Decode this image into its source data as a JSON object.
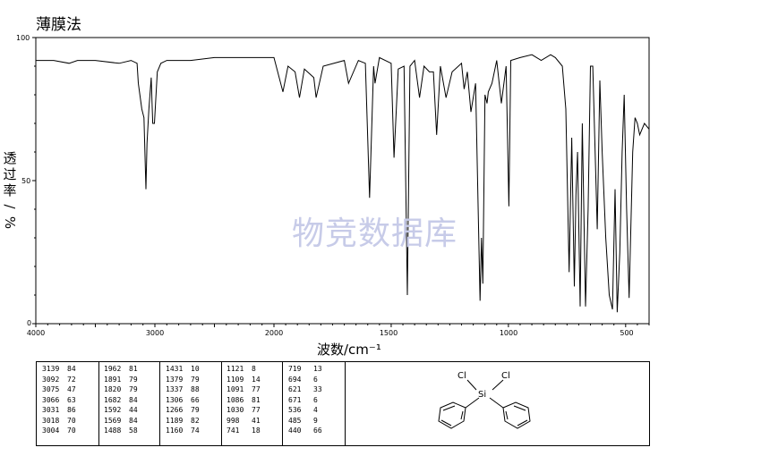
{
  "title": "薄膜法",
  "watermark": "物竞数据库",
  "ylabel_chars": [
    "透",
    "过",
    "率",
    "%"
  ],
  "ylabel_sep": "/",
  "xlabel": "波数/cm⁻¹",
  "chart_data": {
    "type": "line",
    "title": "薄膜法",
    "xlabel": "波数/cm-1",
    "ylabel": "透过率/%",
    "xlim": [
      4000,
      400
    ],
    "ylim": [
      0,
      100
    ],
    "x_ticks": [
      "4000",
      "3000",
      "2000",
      "1500",
      "1000",
      "500"
    ],
    "y_ticks": [
      "100",
      "50",
      "0"
    ],
    "grid": false,
    "series": [
      {
        "x": [
          4000,
          3850,
          3720,
          3650,
          3500,
          3300,
          3200,
          3150,
          3139,
          3110,
          3092,
          3075,
          3066,
          3050,
          3031,
          3018,
          3004,
          2980,
          2950,
          2900,
          2800,
          2700,
          2500,
          2300,
          2200,
          2100,
          2000,
          1962,
          1940,
          1910,
          1891,
          1870,
          1830,
          1820,
          1790,
          1700,
          1682,
          1640,
          1610,
          1592,
          1575,
          1569,
          1550,
          1500,
          1488,
          1470,
          1445,
          1431,
          1420,
          1400,
          1379,
          1360,
          1337,
          1320,
          1306,
          1290,
          1266,
          1240,
          1200,
          1189,
          1175,
          1160,
          1140,
          1121,
          1115,
          1109,
          1100,
          1091,
          1086,
          1070,
          1050,
          1030,
          1010,
          998,
          990,
          950,
          900,
          860,
          820,
          800,
          770,
          755,
          741,
          730,
          719,
          712,
          705,
          694,
          685,
          671,
          660,
          650,
          640,
          621,
          610,
          600,
          585,
          570,
          556,
          545,
          536,
          525,
          515,
          506,
          496,
          485,
          470,
          460,
          450,
          440,
          420,
          400
        ],
        "y": [
          92,
          92,
          91,
          92,
          92,
          91,
          92,
          91,
          84,
          75,
          72,
          47,
          63,
          75,
          86,
          70,
          70,
          88,
          91,
          92,
          92,
          92,
          93,
          93,
          93,
          93,
          93,
          81,
          90,
          88,
          79,
          89,
          86,
          79,
          90,
          92,
          84,
          92,
          91,
          44,
          90,
          84,
          93,
          91,
          58,
          89,
          90,
          10,
          90,
          92,
          79,
          90,
          88,
          88,
          66,
          90,
          79,
          88,
          91,
          82,
          88,
          74,
          84,
          8,
          30,
          14,
          80,
          77,
          81,
          84,
          92,
          77,
          90,
          41,
          92,
          93,
          94,
          92,
          94,
          93,
          90,
          75,
          18,
          65,
          13,
          45,
          60,
          6,
          70,
          6,
          40,
          90,
          90,
          33,
          85,
          60,
          30,
          10,
          5,
          47,
          4,
          25,
          60,
          80,
          40,
          9,
          60,
          72,
          70,
          66,
          70,
          68
        ]
      }
    ]
  },
  "peak_table": {
    "columns": [
      [
        [
          "3139",
          "84"
        ],
        [
          "3092",
          "72"
        ],
        [
          "3075",
          "47"
        ],
        [
          "3066",
          "63"
        ],
        [
          "3031",
          "86"
        ],
        [
          "3018",
          "70"
        ],
        [
          "3004",
          "70"
        ]
      ],
      [
        [
          "1962",
          "81"
        ],
        [
          "1891",
          "79"
        ],
        [
          "1820",
          "79"
        ],
        [
          "1682",
          "84"
        ],
        [
          "1592",
          "44"
        ],
        [
          "1569",
          "84"
        ],
        [
          "1488",
          "58"
        ]
      ],
      [
        [
          "1431",
          "10"
        ],
        [
          "1379",
          "79"
        ],
        [
          "1337",
          "88"
        ],
        [
          "1306",
          "66"
        ],
        [
          "1266",
          "79"
        ],
        [
          "1189",
          "82"
        ],
        [
          "1160",
          "74"
        ]
      ],
      [
        [
          "1121",
          "8"
        ],
        [
          "1109",
          "14"
        ],
        [
          "1091",
          "77"
        ],
        [
          "1086",
          "81"
        ],
        [
          "1030",
          "77"
        ],
        [
          "998",
          "41"
        ],
        [
          "741",
          "18"
        ]
      ],
      [
        [
          "719",
          "13"
        ],
        [
          "694",
          "6"
        ],
        [
          "621",
          "33"
        ],
        [
          "671",
          "6"
        ],
        [
          "536",
          "4"
        ],
        [
          "485",
          "9"
        ],
        [
          "440",
          "66"
        ]
      ]
    ]
  },
  "structure": {
    "atom_si": "Si",
    "atom_cl1": "Cl",
    "atom_cl2": "Cl"
  }
}
